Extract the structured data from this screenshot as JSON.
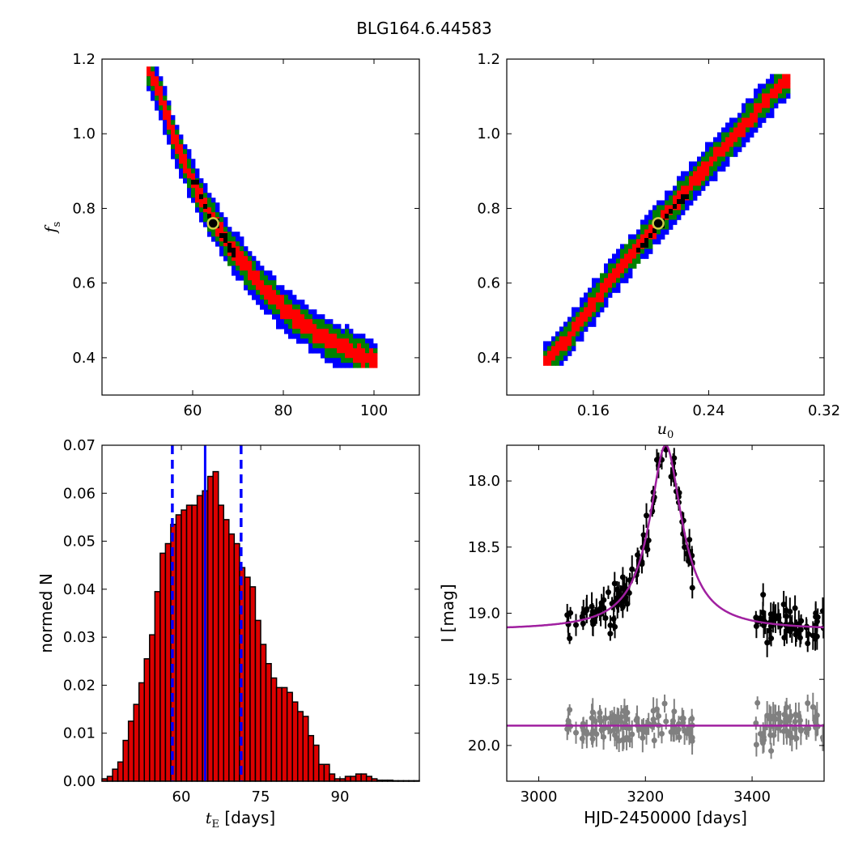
{
  "figure": {
    "title": "BLG164.6.44583"
  },
  "colors": {
    "sigma1": "#ff0000",
    "sigma2": "#008000",
    "sigma3": "#0000ff",
    "best": "#000000",
    "marker_edge": "#cccc44",
    "hist": "#dd0000",
    "model": "#a020a0",
    "data_black": "#000000",
    "data_gray": "#808080",
    "vline": "#0000ff"
  },
  "chart_data": [
    {
      "type": "heatmap",
      "id": "tE_fs",
      "title": "",
      "xlabel": "",
      "ylabel_main": "f",
      "ylabel_sub": "s",
      "xlim": [
        40,
        110
      ],
      "ylim": [
        0.3,
        1.2
      ],
      "xticks": [
        60,
        80,
        100
      ],
      "yticks": [
        0.4,
        0.6,
        0.8,
        1.0,
        1.2
      ],
      "xtick_labels": [
        "60",
        "80",
        "100"
      ],
      "ytick_labels": [
        "0.4",
        "0.6",
        "0.8",
        "1.0",
        "1.2"
      ],
      "best_fit": [
        64.5,
        0.76
      ],
      "ridge": [
        [
          50.5,
          1.17
        ],
        [
          53.5,
          1.08
        ],
        [
          56,
          0.98
        ],
        [
          59,
          0.9
        ],
        [
          62,
          0.82
        ],
        [
          65,
          0.76
        ],
        [
          68,
          0.7
        ],
        [
          72,
          0.64
        ],
        [
          76,
          0.58
        ],
        [
          81,
          0.52
        ],
        [
          88,
          0.46
        ],
        [
          95,
          0.42
        ],
        [
          100,
          0.39
        ]
      ],
      "half_width": {
        "sigma1": 0.022,
        "sigma2": 0.04,
        "sigma3": 0.058
      }
    },
    {
      "type": "heatmap",
      "id": "u0_fs",
      "title": "",
      "xlabel_main": "u",
      "xlabel_sub": "0",
      "ylabel": "",
      "xlim": [
        0.1,
        0.32
      ],
      "ylim": [
        0.3,
        1.2
      ],
      "xticks": [
        0.16,
        0.24,
        0.32
      ],
      "yticks": [
        0.4,
        0.6,
        0.8,
        1.0,
        1.2
      ],
      "xtick_labels": [
        "0.16",
        "0.24",
        "0.32"
      ],
      "ytick_labels": [
        "0.4",
        "0.6",
        "0.8",
        "1.0",
        "1.2"
      ],
      "best_fit": [
        0.205,
        0.76
      ],
      "ridge": [
        [
          0.128,
          0.39
        ],
        [
          0.14,
          0.44
        ],
        [
          0.155,
          0.52
        ],
        [
          0.17,
          0.6
        ],
        [
          0.185,
          0.67
        ],
        [
          0.205,
          0.76
        ],
        [
          0.225,
          0.85
        ],
        [
          0.245,
          0.94
        ],
        [
          0.26,
          1.0
        ],
        [
          0.275,
          1.07
        ],
        [
          0.295,
          1.15
        ]
      ],
      "half_width": {
        "sigma1": 0.02,
        "sigma2": 0.038,
        "sigma3": 0.055
      }
    },
    {
      "type": "bar",
      "id": "tE_hist",
      "title": "",
      "xlabel_main": "t",
      "xlabel_sub": "E",
      "xlabel_unit": " [days]",
      "ylabel": "normed N",
      "xlim": [
        45,
        105
      ],
      "ylim": [
        0,
        0.07
      ],
      "xticks": [
        60,
        75,
        90
      ],
      "yticks": [
        0.0,
        0.01,
        0.02,
        0.03,
        0.04,
        0.05,
        0.06,
        0.07
      ],
      "xtick_labels": [
        "60",
        "75",
        "90"
      ],
      "ytick_labels": [
        "0.00",
        "0.01",
        "0.02",
        "0.03",
        "0.04",
        "0.05",
        "0.06",
        "0.07"
      ],
      "bin_start": 45,
      "bin_width": 1,
      "values": [
        0.0005,
        0.001,
        0.0025,
        0.004,
        0.0085,
        0.0125,
        0.016,
        0.0205,
        0.0255,
        0.0305,
        0.0395,
        0.0475,
        0.0495,
        0.0535,
        0.0555,
        0.0565,
        0.0575,
        0.0575,
        0.0595,
        0.0605,
        0.0635,
        0.0645,
        0.0575,
        0.0545,
        0.0515,
        0.0495,
        0.0445,
        0.0425,
        0.0405,
        0.0335,
        0.0285,
        0.0245,
        0.0215,
        0.0195,
        0.0195,
        0.0185,
        0.0165,
        0.0145,
        0.0135,
        0.0095,
        0.0075,
        0.0035,
        0.0035,
        0.0015,
        0.0005,
        0.0005,
        0.001,
        0.001,
        0.0015,
        0.0015,
        0.001,
        0.0005,
        0.0002,
        0.0002,
        0.0002,
        0.0001,
        0.0001,
        0.0001,
        0.0001,
        0.0001
      ],
      "median": 64.5,
      "lower": 58.3,
      "upper": 71.3
    },
    {
      "type": "scatter",
      "id": "lightcurve",
      "title": "",
      "xlabel": "HJD-2450000 [days]",
      "ylabel": "I [mag]",
      "xlim": [
        2940,
        3535
      ],
      "ylim": [
        20.27,
        17.73
      ],
      "xticks": [
        3000,
        3200,
        3400
      ],
      "yticks": [
        18.0,
        18.5,
        19.0,
        19.5,
        20.0
      ],
      "xtick_labels": [
        "3000",
        "3200",
        "3400"
      ],
      "ytick_labels": [
        "18.0",
        "18.5",
        "19.0",
        "19.5",
        "20.0"
      ],
      "model": {
        "t0": 3238,
        "peak_mag": 17.73,
        "baseline_mag": 19.13,
        "width_days": 27
      },
      "residual_baseline": 19.85,
      "data_segments": [
        [
          3052,
          3195
        ],
        [
          3195,
          3290
        ],
        [
          3405,
          3535
        ]
      ]
    }
  ]
}
